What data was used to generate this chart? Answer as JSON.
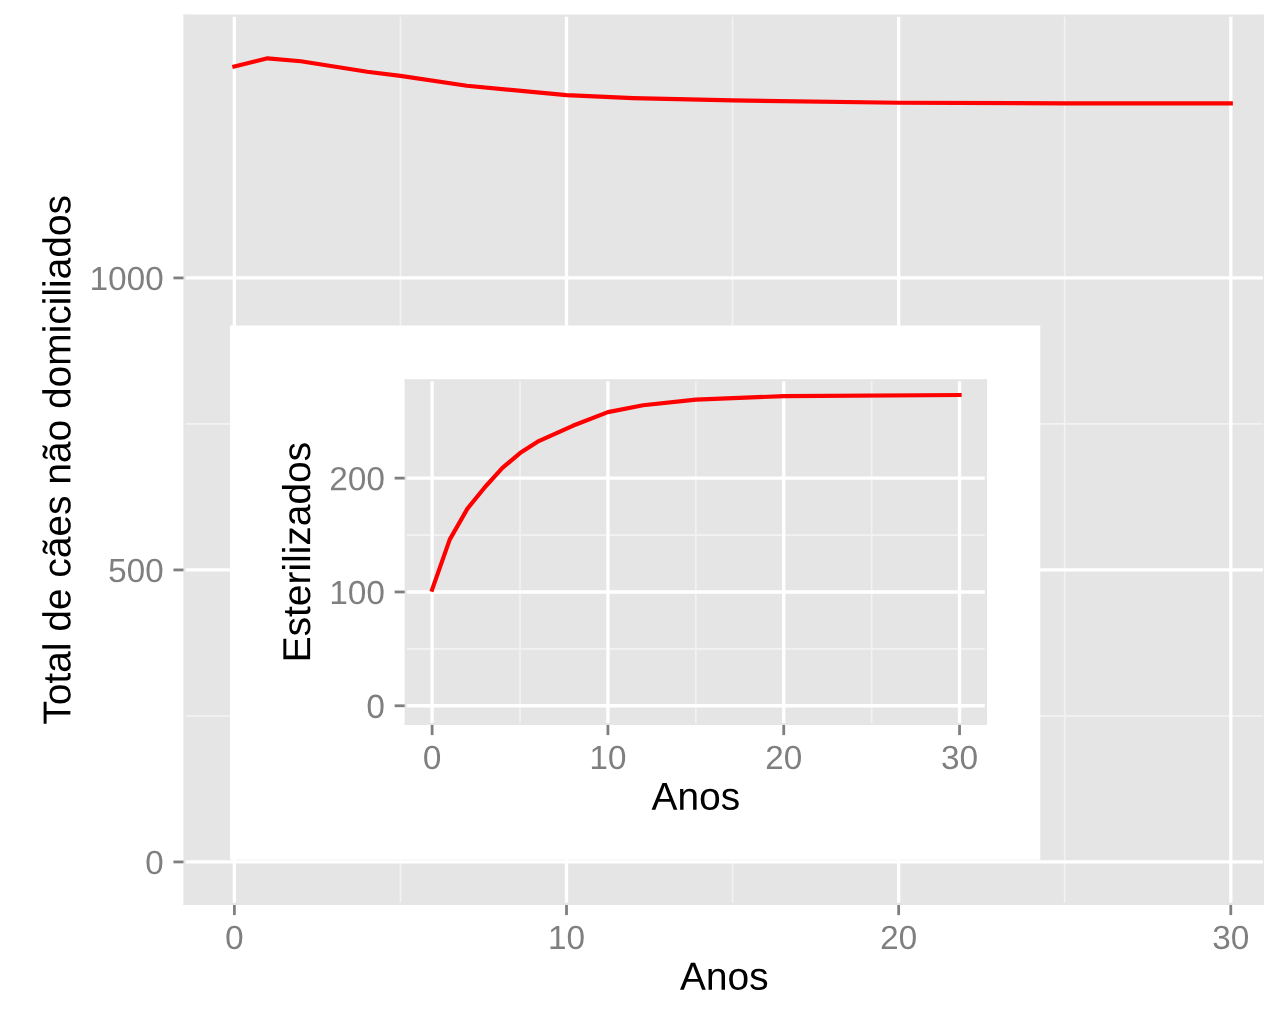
{
  "chart_data": [
    {
      "type": "line",
      "xlabel": "Anos",
      "ylabel": "Total de cães não domiciliados",
      "x": [
        0,
        1,
        2,
        3,
        4,
        5,
        7,
        10,
        12,
        15,
        20,
        25,
        30
      ],
      "series": [
        {
          "color": "#ff0000",
          "values": [
            1362,
            1376,
            1371,
            1362,
            1353,
            1346,
            1329,
            1313,
            1308,
            1304,
            1300,
            1299,
            1299
          ]
        }
      ],
      "xlim": [
        -1.5,
        31
      ],
      "ylim": [
        -72,
        1449
      ],
      "xticks": [
        0,
        10,
        20,
        30
      ],
      "yticks": [
        0,
        500,
        1000
      ],
      "grid": true,
      "legend": false
    },
    {
      "type": "line",
      "xlabel": "Anos",
      "ylabel": "Esterilizados",
      "x": [
        0,
        1,
        2,
        3,
        4,
        5,
        6,
        8,
        10,
        12,
        15,
        20,
        30
      ],
      "series": [
        {
          "color": "#ff0000",
          "values": [
            102,
            146,
            173,
            192,
            209,
            222,
            232,
            246,
            258,
            264,
            269,
            272,
            273
          ]
        }
      ],
      "xlim": [
        -1.5,
        31.5
      ],
      "ylim": [
        -16,
        286
      ],
      "xticks": [
        0,
        10,
        20,
        30
      ],
      "yticks": [
        0,
        100,
        200
      ],
      "grid": true,
      "legend": false
    }
  ]
}
